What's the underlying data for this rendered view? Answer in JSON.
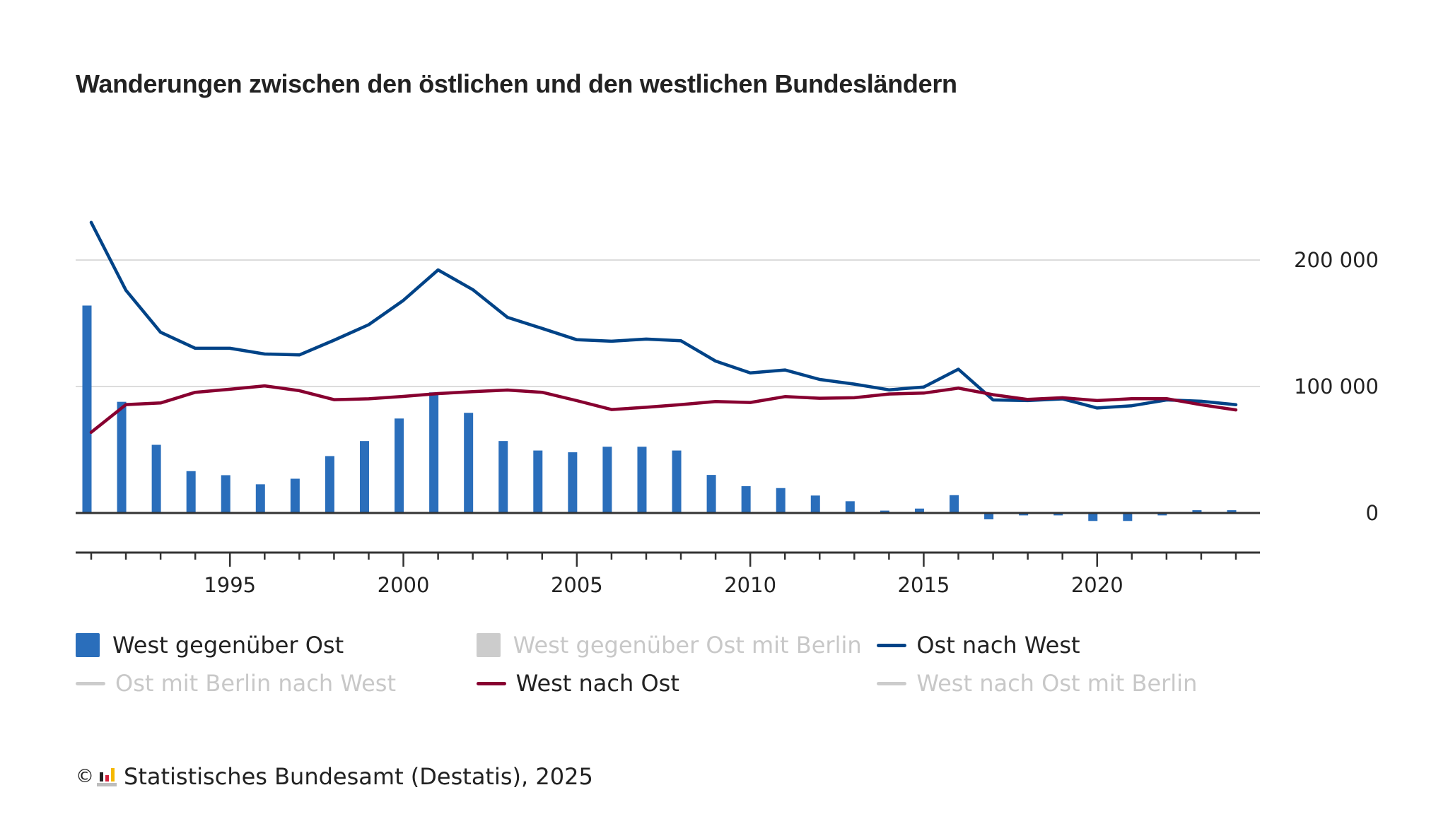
{
  "title": "Wanderungen zwischen den östlichen und den westlichen Bundesländern",
  "chart_data": {
    "type": "bar+line",
    "title": "Wanderungen zwischen den östlichen und den westlichen Bundesländern",
    "xlabel": "",
    "ylabel": "",
    "x": [
      1991,
      1992,
      1993,
      1994,
      1995,
      1996,
      1997,
      1998,
      1999,
      2000,
      2001,
      2002,
      2003,
      2004,
      2005,
      2006,
      2007,
      2008,
      2009,
      2010,
      2011,
      2012,
      2013,
      2014,
      2015,
      2016,
      2017,
      2018,
      2019,
      2020,
      2021,
      2022,
      2023,
      2024
    ],
    "x_ticks": [
      1995,
      2000,
      2005,
      2010,
      2015,
      2020
    ],
    "ylim": [
      -31000,
      235000
    ],
    "y_ticks": [
      0,
      100000,
      200000
    ],
    "y_tick_labels": [
      "0",
      "100 000",
      "200 000"
    ],
    "y_axis_position": "right",
    "grid": true,
    "legend_position": "bottom",
    "series": [
      {
        "name": "West gegenüber Ost",
        "type": "bar",
        "color": "#2a6ebb",
        "active": true,
        "values": [
          164000,
          87900,
          53900,
          33100,
          29900,
          22700,
          27100,
          45000,
          56900,
          74700,
          95400,
          79200,
          56900,
          49400,
          48000,
          52400,
          52400,
          49400,
          30100,
          21200,
          19700,
          13800,
          9300,
          1900,
          3500,
          14100,
          -5000,
          -1900,
          -1900,
          -6300,
          -6300,
          -1900,
          2200,
          2200
        ]
      },
      {
        "name": "West gegenüber Ost mit Berlin",
        "type": "bar",
        "color": "#cccccc",
        "active": false,
        "values": []
      },
      {
        "name": "Ost nach West",
        "type": "line",
        "color": "#004387",
        "active": true,
        "values": [
          229700,
          176100,
          142900,
          130200,
          130200,
          125700,
          125000,
          136600,
          148900,
          168100,
          192200,
          176600,
          154700,
          145900,
          137000,
          135800,
          137500,
          136200,
          120100,
          110800,
          113100,
          105600,
          101900,
          97400,
          99600,
          113700,
          89400,
          88900,
          90200,
          83000,
          84800,
          89400,
          88300,
          85600
        ]
      },
      {
        "name": "Ost mit Berlin nach West",
        "type": "line",
        "color": "#cccccc",
        "active": false,
        "values": []
      },
      {
        "name": "West nach Ost",
        "type": "line",
        "color": "#870030",
        "active": true,
        "values": [
          63800,
          85700,
          87000,
          95400,
          97800,
          100500,
          96700,
          89600,
          90300,
          92200,
          94400,
          95900,
          97200,
          95400,
          88800,
          81800,
          83600,
          85700,
          88100,
          87400,
          92000,
          90700,
          91100,
          94100,
          94800,
          98700,
          93500,
          89800,
          91100,
          88900,
          90400,
          90400,
          85600,
          81500
        ]
      },
      {
        "name": "West nach Ost mit Berlin",
        "type": "line",
        "color": "#cccccc",
        "active": false,
        "values": []
      }
    ]
  },
  "legend": [
    {
      "label": "West gegenüber Ost",
      "kind": "box",
      "color": "#2a6ebb",
      "active": true
    },
    {
      "label": "West gegenüber Ost mit Berlin",
      "kind": "box",
      "color": "#cccccc",
      "active": false
    },
    {
      "label": "Ost nach West",
      "kind": "line",
      "color": "#004387",
      "active": true
    },
    {
      "label": "Ost mit Berlin nach West",
      "kind": "line",
      "color": "#cccccc",
      "active": false
    },
    {
      "label": "West nach Ost",
      "kind": "line",
      "color": "#870030",
      "active": true
    },
    {
      "label": "West nach Ost mit Berlin",
      "kind": "line",
      "color": "#cccccc",
      "active": false
    }
  ],
  "footer": {
    "copyright_symbol": "©",
    "source": "Statistisches Bundesamt (Destatis), 2025"
  }
}
